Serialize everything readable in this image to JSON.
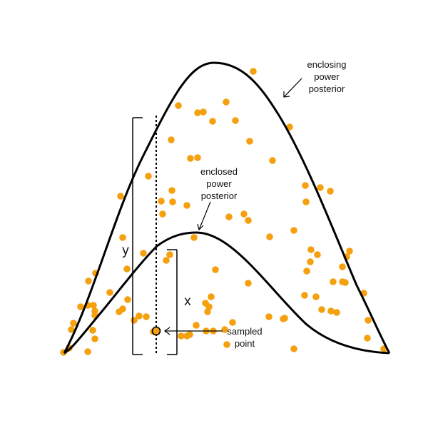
{
  "labels": {
    "enclosing": [
      "enclosing",
      "power",
      "posterior"
    ],
    "enclosed": [
      "enclosed",
      "power",
      "posterior"
    ],
    "sampled": [
      "sampled",
      "point"
    ],
    "y": "y",
    "x": "x"
  },
  "colors": {
    "points": "#f5a00f",
    "curves": "#000000",
    "background": "#ffffff"
  },
  "sample_point_count": 120
}
